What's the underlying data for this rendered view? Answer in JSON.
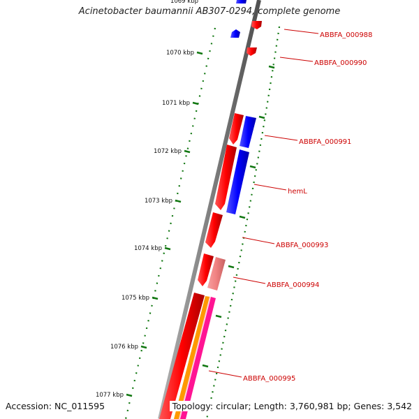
{
  "title": "Acinetobacter baumannii AB307-0294, complete genome",
  "footer": {
    "accession": "Accession: NC_011595",
    "topology": "Topology: circular; Length: 3,760,981 bp; Genes: 3,542"
  },
  "ticks": [
    "1069 kbp",
    "1070 kbp",
    "1071 kbp",
    "1072 kbp",
    "1073 kbp",
    "1074 kbp",
    "1075 kbp",
    "1076 kbp",
    "1077 kbp"
  ],
  "genes": [
    "ABBFA_000988",
    "ABBFA_000990",
    "ABBFA_000991",
    "hemL",
    "ABBFA_000993",
    "ABBFA_000994",
    "ABBFA_000995"
  ],
  "colors": {
    "cds_forward": "#ee1111",
    "cds_reverse": "#1111ee",
    "pseudo": "#f08080",
    "orange": "#ff9900",
    "magenta": "#ff1493",
    "backbone": "#808080",
    "tick_green": "#117711",
    "label_red": "#cc0000"
  }
}
